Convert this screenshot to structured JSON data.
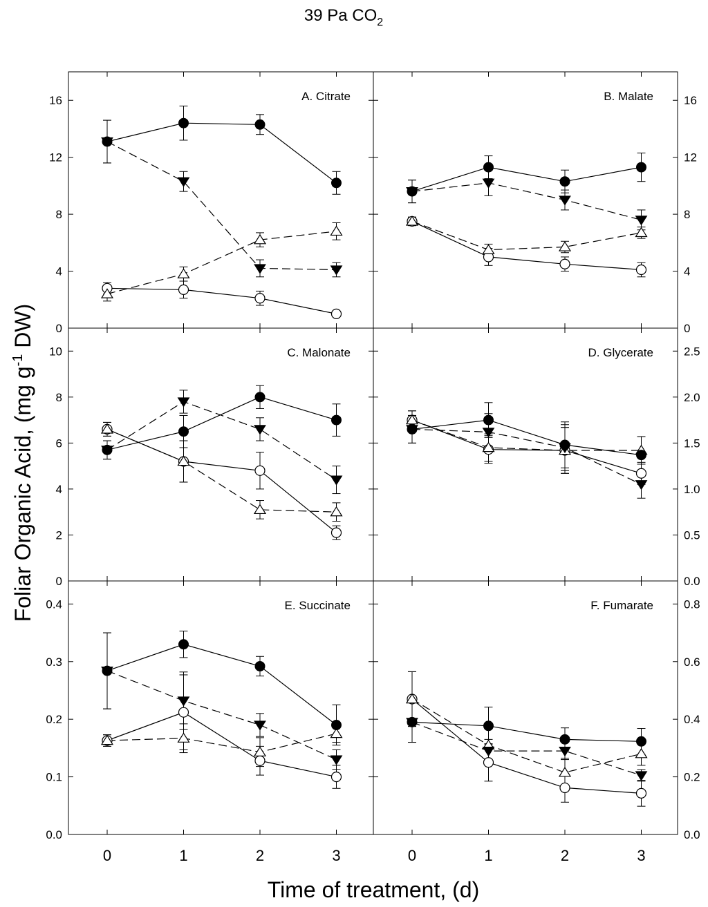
{
  "figure": {
    "title_main": "39 Pa CO",
    "title_sub": "2",
    "ylabel_pre": "Foliar Organic Acid, (mg g",
    "ylabel_sup": "-1",
    "ylabel_post": " DW)",
    "xlabel": "Time of treatment, (d)",
    "colors": {
      "axis": "#000000",
      "filled": "#000000",
      "open": "#ffffff"
    }
  },
  "chart_data": [
    {
      "type": "line",
      "panel": "A. Citrate",
      "x": [
        0,
        1,
        2,
        3
      ],
      "ylim": [
        0,
        18
      ],
      "yticks": [
        "0",
        "4",
        "8",
        "12",
        "16"
      ],
      "xticks": [
        "0",
        "1",
        "2",
        "3"
      ],
      "series": [
        {
          "marker": "filled-circle",
          "line": "solid",
          "values": [
            13.1,
            14.4,
            14.3,
            10.2
          ],
          "errors": [
            1.5,
            1.2,
            0.7,
            0.8
          ]
        },
        {
          "marker": "filled-triangle-down",
          "line": "dashed",
          "values": [
            13.1,
            10.3,
            4.2,
            4.1
          ],
          "errors": [
            1.5,
            0.7,
            0.6,
            0.5
          ]
        },
        {
          "marker": "open-triangle-up",
          "line": "dashed",
          "values": [
            2.4,
            3.8,
            6.2,
            6.8
          ],
          "errors": [
            0.5,
            0.5,
            0.5,
            0.6
          ]
        },
        {
          "marker": "open-circle",
          "line": "solid",
          "values": [
            2.8,
            2.7,
            2.1,
            1.0
          ],
          "errors": [
            0.4,
            0.6,
            0.5,
            0.1
          ]
        }
      ]
    },
    {
      "type": "line",
      "panel": "B. Malate",
      "x": [
        0,
        1,
        2,
        3
      ],
      "ylim": [
        0,
        18
      ],
      "yticks": [
        "0",
        "4",
        "8",
        "12",
        "16"
      ],
      "xticks": [
        "0",
        "1",
        "2",
        "3"
      ],
      "series": [
        {
          "marker": "filled-circle",
          "line": "solid",
          "values": [
            9.6,
            11.3,
            10.3,
            11.3
          ],
          "errors": [
            0.8,
            0.8,
            0.8,
            1.0
          ]
        },
        {
          "marker": "filled-triangle-down",
          "line": "dashed",
          "values": [
            9.6,
            10.2,
            9.0,
            7.6
          ],
          "errors": [
            0.8,
            0.9,
            0.7,
            0.7
          ]
        },
        {
          "marker": "open-triangle-up",
          "line": "dashed",
          "values": [
            7.5,
            5.5,
            5.7,
            6.7
          ],
          "errors": [
            0.3,
            0.4,
            0.4,
            0.4
          ]
        },
        {
          "marker": "open-circle",
          "line": "solid",
          "values": [
            7.5,
            5.0,
            4.5,
            4.1
          ],
          "errors": [
            0.3,
            0.6,
            0.5,
            0.5
          ]
        }
      ]
    },
    {
      "type": "line",
      "panel": "C. Malonate",
      "x": [
        0,
        1,
        2,
        3
      ],
      "ylim": [
        0,
        11
      ],
      "yticks": [
        "0",
        "2",
        "4",
        "6",
        "8",
        "10"
      ],
      "xticks": [
        "0",
        "1",
        "2",
        "3"
      ],
      "series": [
        {
          "marker": "filled-circle",
          "line": "solid",
          "values": [
            5.7,
            6.5,
            8.0,
            7.0
          ],
          "errors": [
            0.4,
            0.7,
            0.5,
            0.7
          ]
        },
        {
          "marker": "filled-triangle-down",
          "line": "dashed",
          "values": [
            5.7,
            7.8,
            6.6,
            4.4
          ],
          "errors": [
            0.4,
            0.5,
            0.5,
            0.6
          ]
        },
        {
          "marker": "open-triangle-up",
          "line": "dashed",
          "values": [
            6.6,
            5.2,
            3.1,
            3.0
          ],
          "errors": [
            0.3,
            0.9,
            0.4,
            0.4
          ]
        },
        {
          "marker": "open-circle",
          "line": "solid",
          "values": [
            6.6,
            5.2,
            4.8,
            2.1
          ],
          "errors": [
            0.3,
            0.9,
            0.8,
            0.3
          ]
        }
      ]
    },
    {
      "type": "line",
      "panel": "D. Glycerate",
      "x": [
        0,
        1,
        2,
        3
      ],
      "ylim": [
        0,
        2.75
      ],
      "yticks": [
        "0.0",
        "0.5",
        "1.0",
        "1.5",
        "2.0",
        "2.5"
      ],
      "xticks": [
        "0",
        "1",
        "2",
        "3"
      ],
      "series": [
        {
          "marker": "filled-circle",
          "line": "solid",
          "values": [
            1.65,
            1.75,
            1.48,
            1.37
          ],
          "errors": [
            0.15,
            0.19,
            0.25,
            0.2
          ]
        },
        {
          "marker": "filled-triangle-down",
          "line": "dashed",
          "values": [
            1.65,
            1.62,
            1.45,
            1.05
          ],
          "errors": [
            0.15,
            0.2,
            0.25,
            0.15
          ]
        },
        {
          "marker": "open-triangle-up",
          "line": "dashed",
          "values": [
            1.75,
            1.45,
            1.42,
            1.42
          ],
          "errors": [
            0.1,
            0.15,
            0.25,
            0.15
          ]
        },
        {
          "marker": "open-circle",
          "line": "solid",
          "values": [
            1.75,
            1.43,
            1.42,
            1.17
          ],
          "errors": [
            0.1,
            0.15,
            0.25,
            0.12
          ]
        }
      ]
    },
    {
      "type": "line",
      "panel": "E. Succinate",
      "x": [
        0,
        1,
        2,
        3
      ],
      "ylim": [
        0,
        0.44
      ],
      "yticks": [
        "0.0",
        "0.1",
        "0.2",
        "0.3",
        "0.4"
      ],
      "xticks": [
        "0",
        "1",
        "2",
        "3"
      ],
      "series": [
        {
          "marker": "filled-circle",
          "line": "solid",
          "values": [
            0.284,
            0.33,
            0.292,
            0.19
          ],
          "errors": [
            0.066,
            0.023,
            0.017,
            0.035
          ]
        },
        {
          "marker": "filled-triangle-down",
          "line": "dashed",
          "values": [
            0.284,
            0.232,
            0.19,
            0.13
          ],
          "errors": [
            0.066,
            0.05,
            0.02,
            0.017
          ]
        },
        {
          "marker": "open-triangle-up",
          "line": "dashed",
          "values": [
            0.163,
            0.167,
            0.143,
            0.175
          ],
          "errors": [
            0.01,
            0.025,
            0.025,
            0.015
          ]
        },
        {
          "marker": "open-circle",
          "line": "solid",
          "values": [
            0.163,
            0.212,
            0.128,
            0.1
          ],
          "errors": [
            0.01,
            0.065,
            0.025,
            0.02
          ]
        }
      ]
    },
    {
      "type": "line",
      "panel": "F. Fumarate",
      "x": [
        0,
        1,
        2,
        3
      ],
      "ylim": [
        0,
        0.88
      ],
      "yticks": [
        "0.0",
        "0.2",
        "0.4",
        "0.6",
        "0.8"
      ],
      "xticks": [
        "0",
        "1",
        "2",
        "3"
      ],
      "series": [
        {
          "marker": "filled-circle",
          "line": "solid",
          "values": [
            0.39,
            0.377,
            0.33,
            0.323
          ],
          "errors": [
            0.07,
            0.065,
            0.04,
            0.045
          ]
        },
        {
          "marker": "filled-triangle-down",
          "line": "dashed",
          "values": [
            0.39,
            0.29,
            0.29,
            0.205
          ],
          "errors": [
            0.07,
            0.04,
            0.03,
            0.02
          ]
        },
        {
          "marker": "open-triangle-up",
          "line": "dashed",
          "values": [
            0.47,
            0.31,
            0.215,
            0.28
          ],
          "errors": [
            0.095,
            0.065,
            0.05,
            0.04
          ]
        },
        {
          "marker": "open-circle",
          "line": "solid",
          "values": [
            0.47,
            0.25,
            0.162,
            0.143
          ],
          "errors": [
            0.095,
            0.065,
            0.05,
            0.045
          ]
        }
      ]
    }
  ]
}
